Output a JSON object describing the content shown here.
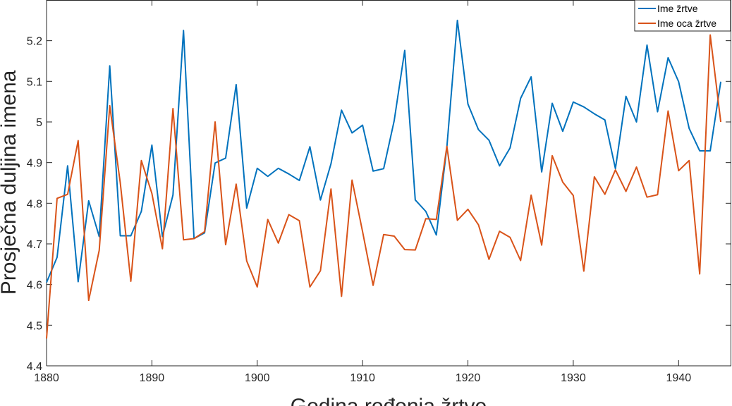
{
  "chart_data": {
    "type": "line",
    "title": "",
    "xlabel": "Godina rođenja žrtve",
    "ylabel": "Prosječna duljina imena",
    "xlim": [
      1880,
      1945
    ],
    "ylim": [
      4.4,
      5.3
    ],
    "xticks": [
      1880,
      1890,
      1900,
      1910,
      1920,
      1930,
      1940
    ],
    "yticks": [
      4.4,
      4.5,
      4.6,
      4.7,
      4.8,
      4.9,
      5,
      5.1,
      5.2
    ],
    "grid": false,
    "legend_position": "top-right",
    "x": [
      1880,
      1881,
      1882,
      1883,
      1884,
      1885,
      1886,
      1887,
      1888,
      1889,
      1890,
      1891,
      1892,
      1893,
      1894,
      1895,
      1896,
      1897,
      1898,
      1899,
      1900,
      1901,
      1902,
      1903,
      1904,
      1905,
      1906,
      1907,
      1908,
      1909,
      1910,
      1911,
      1912,
      1913,
      1914,
      1915,
      1916,
      1917,
      1918,
      1919,
      1920,
      1921,
      1922,
      1923,
      1924,
      1925,
      1926,
      1927,
      1928,
      1929,
      1930,
      1931,
      1932,
      1933,
      1934,
      1935,
      1936,
      1937,
      1938,
      1939,
      1940,
      1941,
      1942,
      1943,
      1944
    ],
    "series": [
      {
        "name": "Ime žrtve",
        "color": "#0072BD",
        "values": [
          4.605,
          4.667,
          4.892,
          4.607,
          4.806,
          4.718,
          5.138,
          4.72,
          4.72,
          4.78,
          4.943,
          4.718,
          4.82,
          5.225,
          4.713,
          4.727,
          4.899,
          4.911,
          5.092,
          4.788,
          4.886,
          4.866,
          4.886,
          4.872,
          4.856,
          4.939,
          4.808,
          4.897,
          5.029,
          4.973,
          4.992,
          4.879,
          4.885,
          5.003,
          5.176,
          4.808,
          4.78,
          4.722,
          4.938,
          5.25,
          5.044,
          4.981,
          4.955,
          4.892,
          4.936,
          5.058,
          5.111,
          4.877,
          5.046,
          4.977,
          5.049,
          5.037,
          5.02,
          5.005,
          4.885,
          5.063,
          5.0,
          5.189,
          5.025,
          5.158,
          5.099,
          4.984,
          4.929,
          4.929,
          5.099
        ]
      },
      {
        "name": "Ime oca žrtve",
        "color": "#D95319",
        "values": [
          4.467,
          4.812,
          4.822,
          4.954,
          4.561,
          4.684,
          5.04,
          4.85,
          4.608,
          4.905,
          4.824,
          4.688,
          5.033,
          4.71,
          4.713,
          4.73,
          5.0,
          4.698,
          4.847,
          4.658,
          4.594,
          4.76,
          4.702,
          4.772,
          4.757,
          4.594,
          4.634,
          4.835,
          4.571,
          4.857,
          4.73,
          4.598,
          4.723,
          4.719,
          4.686,
          4.685,
          4.762,
          4.76,
          4.94,
          4.758,
          4.785,
          4.747,
          4.662,
          4.731,
          4.716,
          4.659,
          4.82,
          4.697,
          4.917,
          4.852,
          4.819,
          4.633,
          4.865,
          4.822,
          4.882,
          4.829,
          4.889,
          4.815,
          4.821,
          5.027,
          4.88,
          4.905,
          4.626,
          5.214,
          5.0
        ]
      }
    ]
  }
}
